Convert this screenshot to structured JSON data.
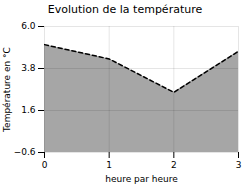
{
  "chart_data": {
    "type": "area",
    "title": "Evolution de la température",
    "xlabel": "heure par heure",
    "ylabel": "Température en °C",
    "x": [
      0,
      1,
      2,
      3
    ],
    "values": [
      5.05,
      4.3,
      2.55,
      4.7
    ],
    "xlim": [
      0,
      3
    ],
    "ylim": [
      -0.6,
      6.0
    ],
    "xticks": [
      0,
      1,
      2,
      3
    ],
    "yticks": [
      -0.6,
      1.6,
      3.8,
      {
        "value": 6.0,
        "label": "6.0"
      }
    ],
    "grid": true,
    "line_style": "dashed"
  }
}
